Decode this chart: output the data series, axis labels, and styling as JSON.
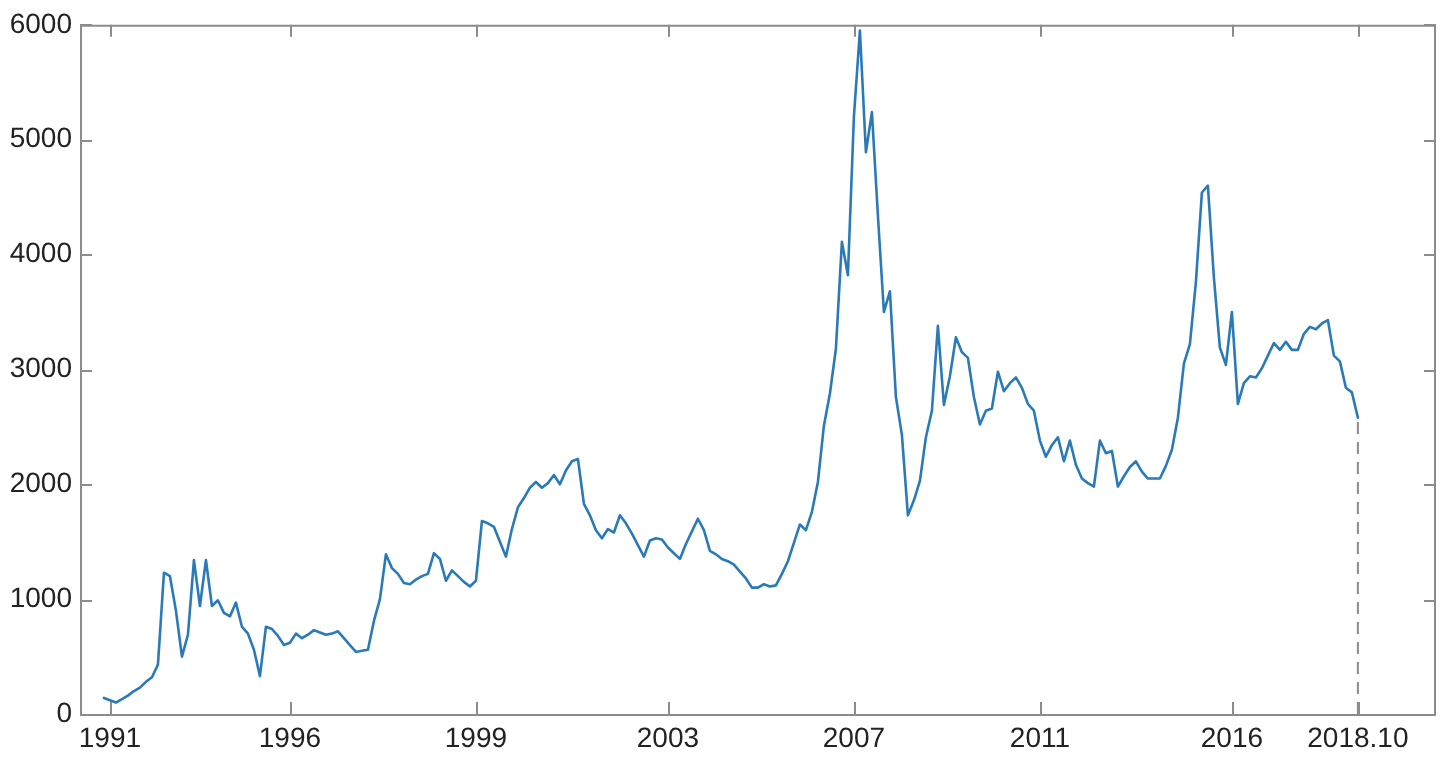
{
  "chart_data": {
    "type": "line",
    "grid": false,
    "legend": false,
    "marker": "none",
    "line_style": "solid",
    "categories": [
      null,
      "1991",
      null,
      null,
      null,
      null,
      null,
      null,
      null,
      null,
      null,
      null,
      null,
      null,
      null,
      null,
      null,
      null,
      null,
      null,
      null,
      null,
      null,
      null,
      null,
      null,
      null,
      null,
      null,
      null,
      null,
      "1996",
      null,
      null,
      null,
      null,
      null,
      null,
      null,
      null,
      null,
      null,
      null,
      null,
      null,
      null,
      null,
      null,
      null,
      null,
      null,
      null,
      null,
      null,
      null,
      null,
      null,
      null,
      null,
      null,
      null,
      null,
      "1999",
      null,
      null,
      null,
      null,
      null,
      null,
      null,
      null,
      null,
      null,
      null,
      null,
      null,
      null,
      null,
      null,
      null,
      null,
      null,
      null,
      null,
      null,
      null,
      null,
      null,
      null,
      null,
      null,
      null,
      null,
      null,
      "2003",
      null,
      null,
      null,
      null,
      null,
      null,
      null,
      null,
      null,
      null,
      null,
      null,
      null,
      null,
      null,
      null,
      null,
      null,
      null,
      null,
      null,
      null,
      null,
      null,
      null,
      null,
      null,
      null,
      null,
      null,
      "2007",
      null,
      null,
      null,
      null,
      null,
      null,
      null,
      null,
      null,
      null,
      null,
      null,
      null,
      null,
      null,
      null,
      null,
      null,
      null,
      null,
      null,
      null,
      null,
      null,
      null,
      null,
      null,
      null,
      null,
      null,
      "2011",
      null,
      null,
      null,
      null,
      null,
      null,
      null,
      null,
      null,
      null,
      null,
      null,
      null,
      null,
      null,
      null,
      null,
      null,
      null,
      null,
      null,
      null,
      null,
      null,
      null,
      null,
      null,
      null,
      null,
      null,
      null,
      "2016",
      null,
      null,
      null,
      null,
      null,
      null,
      null,
      null,
      null,
      null,
      null,
      null,
      null,
      null,
      null,
      null,
      null,
      null,
      null,
      null,
      "2018.10"
    ],
    "ylim": [
      0,
      6000
    ],
    "yticks": [
      0,
      1000,
      2000,
      3000,
      4000,
      5000,
      6000
    ],
    "ref_lines": [
      {
        "axis": "x",
        "value": "2018.10",
        "color": "#8c8c8c",
        "line_style": "dashed"
      }
    ],
    "series": [
      {
        "color": "#2a7ab8",
        "values": [
          140,
          120,
          100,
          130,
          160,
          200,
          230,
          280,
          320,
          430,
          1230,
          1200,
          900,
          500,
          690,
          1340,
          940,
          1340,
          940,
          990,
          880,
          850,
          970,
          760,
          700,
          560,
          330,
          760,
          740,
          680,
          600,
          620,
          700,
          660,
          690,
          730,
          710,
          690,
          700,
          720,
          660,
          600,
          540,
          550,
          560,
          810,
          1000,
          1390,
          1270,
          1220,
          1140,
          1130,
          1170,
          1200,
          1220,
          1400,
          1350,
          1160,
          1250,
          1200,
          1150,
          1110,
          1160,
          1680,
          1660,
          1630,
          1500,
          1370,
          1610,
          1800,
          1880,
          1970,
          2020,
          1970,
          2010,
          2080,
          2000,
          2120,
          2200,
          2220,
          1830,
          1730,
          1600,
          1530,
          1610,
          1580,
          1730,
          1660,
          1570,
          1470,
          1370,
          1510,
          1530,
          1520,
          1450,
          1400,
          1350,
          1480,
          1590,
          1700,
          1600,
          1420,
          1390,
          1350,
          1330,
          1300,
          1240,
          1180,
          1100,
          1100,
          1130,
          1110,
          1120,
          1220,
          1330,
          1490,
          1650,
          1600,
          1760,
          2020,
          2510,
          2790,
          3180,
          4110,
          3820,
          5200,
          5950,
          4890,
          5240,
          4340,
          3500,
          3680,
          2760,
          2430,
          1730,
          1860,
          2030,
          2410,
          2640,
          3380,
          2690,
          2940,
          3280,
          3150,
          3100,
          2760,
          2520,
          2640,
          2660,
          2980,
          2810,
          2880,
          2930,
          2840,
          2700,
          2640,
          2380,
          2240,
          2340,
          2410,
          2200,
          2380,
          2170,
          2050,
          2010,
          1980,
          2380,
          2270,
          2290,
          1980,
          2070,
          2150,
          2200,
          2110,
          2050,
          2050,
          2050,
          2160,
          2300,
          2580,
          3050,
          3220,
          3760,
          4540,
          4600,
          3800,
          3190,
          3040,
          3500,
          2700,
          2880,
          2940,
          2930,
          3010,
          3120,
          3230,
          3170,
          3240,
          3170,
          3170,
          3310,
          3370,
          3350,
          3400,
          3430,
          3120,
          3070,
          2840,
          2800,
          2580
        ]
      }
    ]
  }
}
